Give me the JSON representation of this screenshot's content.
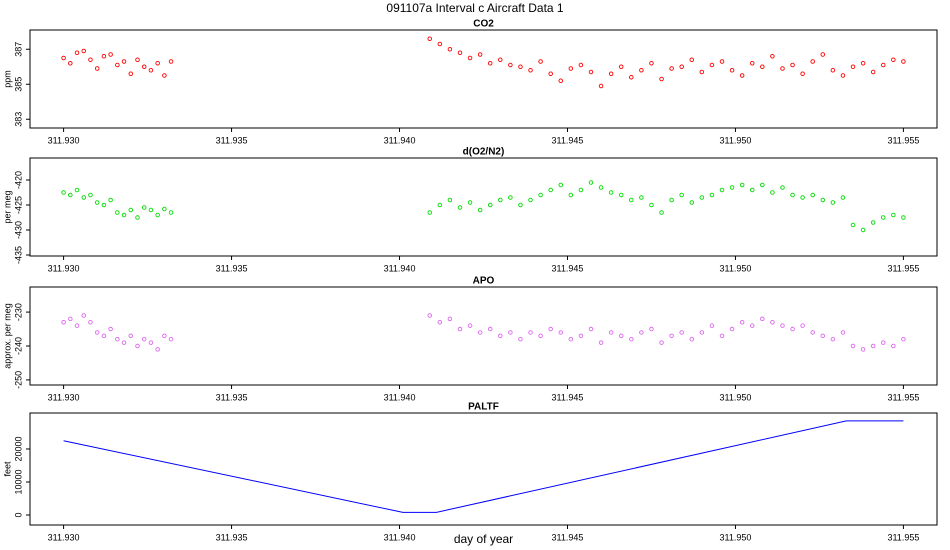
{
  "title": "091107a   Interval c Aircraft Data 1",
  "chart_data": [
    {
      "type": "scatter",
      "title": "CO2",
      "ylabel": "ppm",
      "color": "#ff0000",
      "x": [
        311.93,
        311.9302,
        311.9304,
        311.9306,
        311.9308,
        311.931,
        311.9312,
        311.9314,
        311.9316,
        311.9318,
        311.932,
        311.9322,
        311.9324,
        311.9326,
        311.9328,
        311.933,
        311.9332,
        311.9409,
        311.9412,
        311.9415,
        311.9418,
        311.9421,
        311.9424,
        311.9427,
        311.943,
        311.9433,
        311.9436,
        311.9439,
        311.9442,
        311.9445,
        311.9448,
        311.9451,
        311.9454,
        311.9457,
        311.946,
        311.9463,
        311.9466,
        311.9469,
        311.9472,
        311.9475,
        311.9478,
        311.9481,
        311.9484,
        311.9487,
        311.949,
        311.9493,
        311.9496,
        311.9499,
        311.9502,
        311.9505,
        311.9508,
        311.9511,
        311.9514,
        311.9517,
        311.952,
        311.9523,
        311.9526,
        311.9529,
        311.9532,
        311.9535,
        311.9538,
        311.9541,
        311.9544,
        311.9547,
        311.955
      ],
      "values": [
        386.5,
        386.2,
        386.8,
        386.9,
        386.4,
        385.9,
        386.6,
        386.7,
        386.1,
        386.3,
        385.6,
        386.4,
        386.0,
        385.8,
        386.2,
        385.5,
        386.3,
        387.6,
        387.3,
        387.0,
        386.8,
        386.5,
        386.7,
        386.2,
        386.4,
        386.1,
        386.0,
        385.8,
        386.3,
        385.6,
        385.2,
        385.9,
        386.1,
        385.7,
        384.9,
        385.6,
        386.0,
        385.4,
        385.8,
        386.2,
        385.3,
        385.9,
        386.0,
        386.4,
        385.7,
        386.1,
        386.3,
        385.8,
        385.5,
        386.2,
        386.0,
        386.6,
        385.9,
        386.1,
        385.6,
        386.3,
        386.7,
        385.8,
        385.5,
        386.0,
        386.2,
        385.7,
        386.1,
        386.4,
        386.3
      ],
      "xlim": [
        311.929,
        311.956
      ],
      "ylim": [
        382.5,
        388.1
      ],
      "yticks": [
        383,
        385,
        387
      ],
      "xticks": [
        {
          "value": 311.93,
          "label": "311.930"
        },
        {
          "value": 311.935,
          "label": "311.935"
        },
        {
          "value": 311.94,
          "label": "311.940"
        },
        {
          "value": 311.945,
          "label": "311.945"
        },
        {
          "value": 311.95,
          "label": "311.950"
        },
        {
          "value": 311.955,
          "label": "311.955"
        }
      ]
    },
    {
      "type": "scatter",
      "title": "d(O2/N2)",
      "ylabel": "per meg",
      "color": "#00dd00",
      "x": [
        311.93,
        311.9302,
        311.9304,
        311.9306,
        311.9308,
        311.931,
        311.9312,
        311.9314,
        311.9316,
        311.9318,
        311.932,
        311.9322,
        311.9324,
        311.9326,
        311.9328,
        311.933,
        311.9332,
        311.9409,
        311.9412,
        311.9415,
        311.9418,
        311.9421,
        311.9424,
        311.9427,
        311.943,
        311.9433,
        311.9436,
        311.9439,
        311.9442,
        311.9445,
        311.9448,
        311.9451,
        311.9454,
        311.9457,
        311.946,
        311.9463,
        311.9466,
        311.9469,
        311.9472,
        311.9475,
        311.9478,
        311.9481,
        311.9484,
        311.9487,
        311.949,
        311.9493,
        311.9496,
        311.9499,
        311.9502,
        311.9505,
        311.9508,
        311.9511,
        311.9514,
        311.9517,
        311.952,
        311.9523,
        311.9526,
        311.9529,
        311.9532,
        311.9535,
        311.9538,
        311.9541,
        311.9544,
        311.9547,
        311.955
      ],
      "values": [
        -422.5,
        -423.0,
        -422.0,
        -423.5,
        -423.0,
        -424.5,
        -425.0,
        -424.0,
        -426.5,
        -427.0,
        -426.0,
        -427.5,
        -425.5,
        -426.0,
        -427.0,
        -425.8,
        -426.5,
        -426.5,
        -425,
        -424,
        -425.5,
        -424.5,
        -426,
        -425,
        -424,
        -423.5,
        -425,
        -424,
        -423,
        -422,
        -421,
        -423,
        -422,
        -420.5,
        -421.5,
        -422.5,
        -423,
        -424,
        -423.5,
        -425,
        -426.5,
        -424,
        -423,
        -424.5,
        -423.5,
        -423,
        -422,
        -421.5,
        -421,
        -422,
        -421,
        -422.5,
        -421.5,
        -423,
        -423.5,
        -423,
        -424,
        -424.5,
        -423.5,
        -429,
        -430,
        -428.5,
        -427.5,
        -427,
        -427.5
      ],
      "xlim": [
        311.929,
        311.956
      ],
      "ylim": [
        -435.2,
        -415.6
      ],
      "yticks": [
        -420,
        -425,
        -430,
        -435
      ],
      "xticks": [
        {
          "value": 311.93,
          "label": "311.930"
        },
        {
          "value": 311.935,
          "label": "311.935"
        },
        {
          "value": 311.94,
          "label": "311.940"
        },
        {
          "value": 311.945,
          "label": "311.945"
        },
        {
          "value": 311.95,
          "label": "311.950"
        },
        {
          "value": 311.955,
          "label": "311.955"
        }
      ]
    },
    {
      "type": "scatter",
      "title": "APO",
      "ylabel": "approx. per meg",
      "color": "#dd66ee",
      "x": [
        311.93,
        311.9302,
        311.9304,
        311.9306,
        311.9308,
        311.931,
        311.9312,
        311.9314,
        311.9316,
        311.9318,
        311.932,
        311.9322,
        311.9324,
        311.9326,
        311.9328,
        311.933,
        311.9332,
        311.9409,
        311.9412,
        311.9415,
        311.9418,
        311.9421,
        311.9424,
        311.9427,
        311.943,
        311.9433,
        311.9436,
        311.9439,
        311.9442,
        311.9445,
        311.9448,
        311.9451,
        311.9454,
        311.9457,
        311.946,
        311.9463,
        311.9466,
        311.9469,
        311.9472,
        311.9475,
        311.9478,
        311.9481,
        311.9484,
        311.9487,
        311.949,
        311.9493,
        311.9496,
        311.9499,
        311.9502,
        311.9505,
        311.9508,
        311.9511,
        311.9514,
        311.9517,
        311.952,
        311.9523,
        311.9526,
        311.9529,
        311.9532,
        311.9535,
        311.9538,
        311.9541,
        311.9544,
        311.9547,
        311.955
      ],
      "values": [
        -233,
        -232,
        -234,
        -231,
        -233,
        -236,
        -237,
        -235,
        -238,
        -239,
        -237,
        -240,
        -238,
        -239,
        -241,
        -237,
        -238,
        -231,
        -233,
        -232,
        -235,
        -234,
        -236,
        -235,
        -237,
        -236,
        -238,
        -236,
        -237,
        -235,
        -236,
        -238,
        -237,
        -235,
        -239,
        -236,
        -237,
        -238,
        -236,
        -235,
        -239,
        -237,
        -236,
        -238,
        -236,
        -234,
        -237,
        -235,
        -233,
        -234,
        -232,
        -233,
        -234,
        -235,
        -234,
        -236,
        -237,
        -238,
        -236,
        -240,
        -241,
        -240,
        -239,
        -240,
        -238
      ],
      "xlim": [
        311.929,
        311.956
      ],
      "ylim": [
        -251.5,
        -222.6
      ],
      "yticks": [
        -230,
        -240,
        -250
      ],
      "xticks": [
        {
          "value": 311.93,
          "label": "311.930"
        },
        {
          "value": 311.935,
          "label": "311.935"
        },
        {
          "value": 311.94,
          "label": "311.940"
        },
        {
          "value": 311.945,
          "label": "311.945"
        },
        {
          "value": 311.95,
          "label": "311.950"
        },
        {
          "value": 311.955,
          "label": "311.955"
        }
      ]
    },
    {
      "type": "line",
      "title": "PALTF",
      "ylabel": "feet",
      "xlabel": "day of year",
      "color": "#0000ff",
      "x": [
        311.93,
        311.9401,
        311.9411,
        311.9533,
        311.955
      ],
      "values": [
        22500,
        800,
        800,
        28500,
        28500
      ],
      "xlim": [
        311.929,
        311.956
      ],
      "ylim": [
        -3030,
        30900
      ],
      "yticks": [
        0,
        10000,
        20000
      ],
      "xticks": [
        {
          "value": 311.93,
          "label": "311.930"
        },
        {
          "value": 311.935,
          "label": "311.935"
        },
        {
          "value": 311.94,
          "label": "311.940"
        },
        {
          "value": 311.945,
          "label": "311.945"
        },
        {
          "value": 311.95,
          "label": "311.950"
        },
        {
          "value": 311.955,
          "label": "311.955"
        }
      ]
    }
  ]
}
